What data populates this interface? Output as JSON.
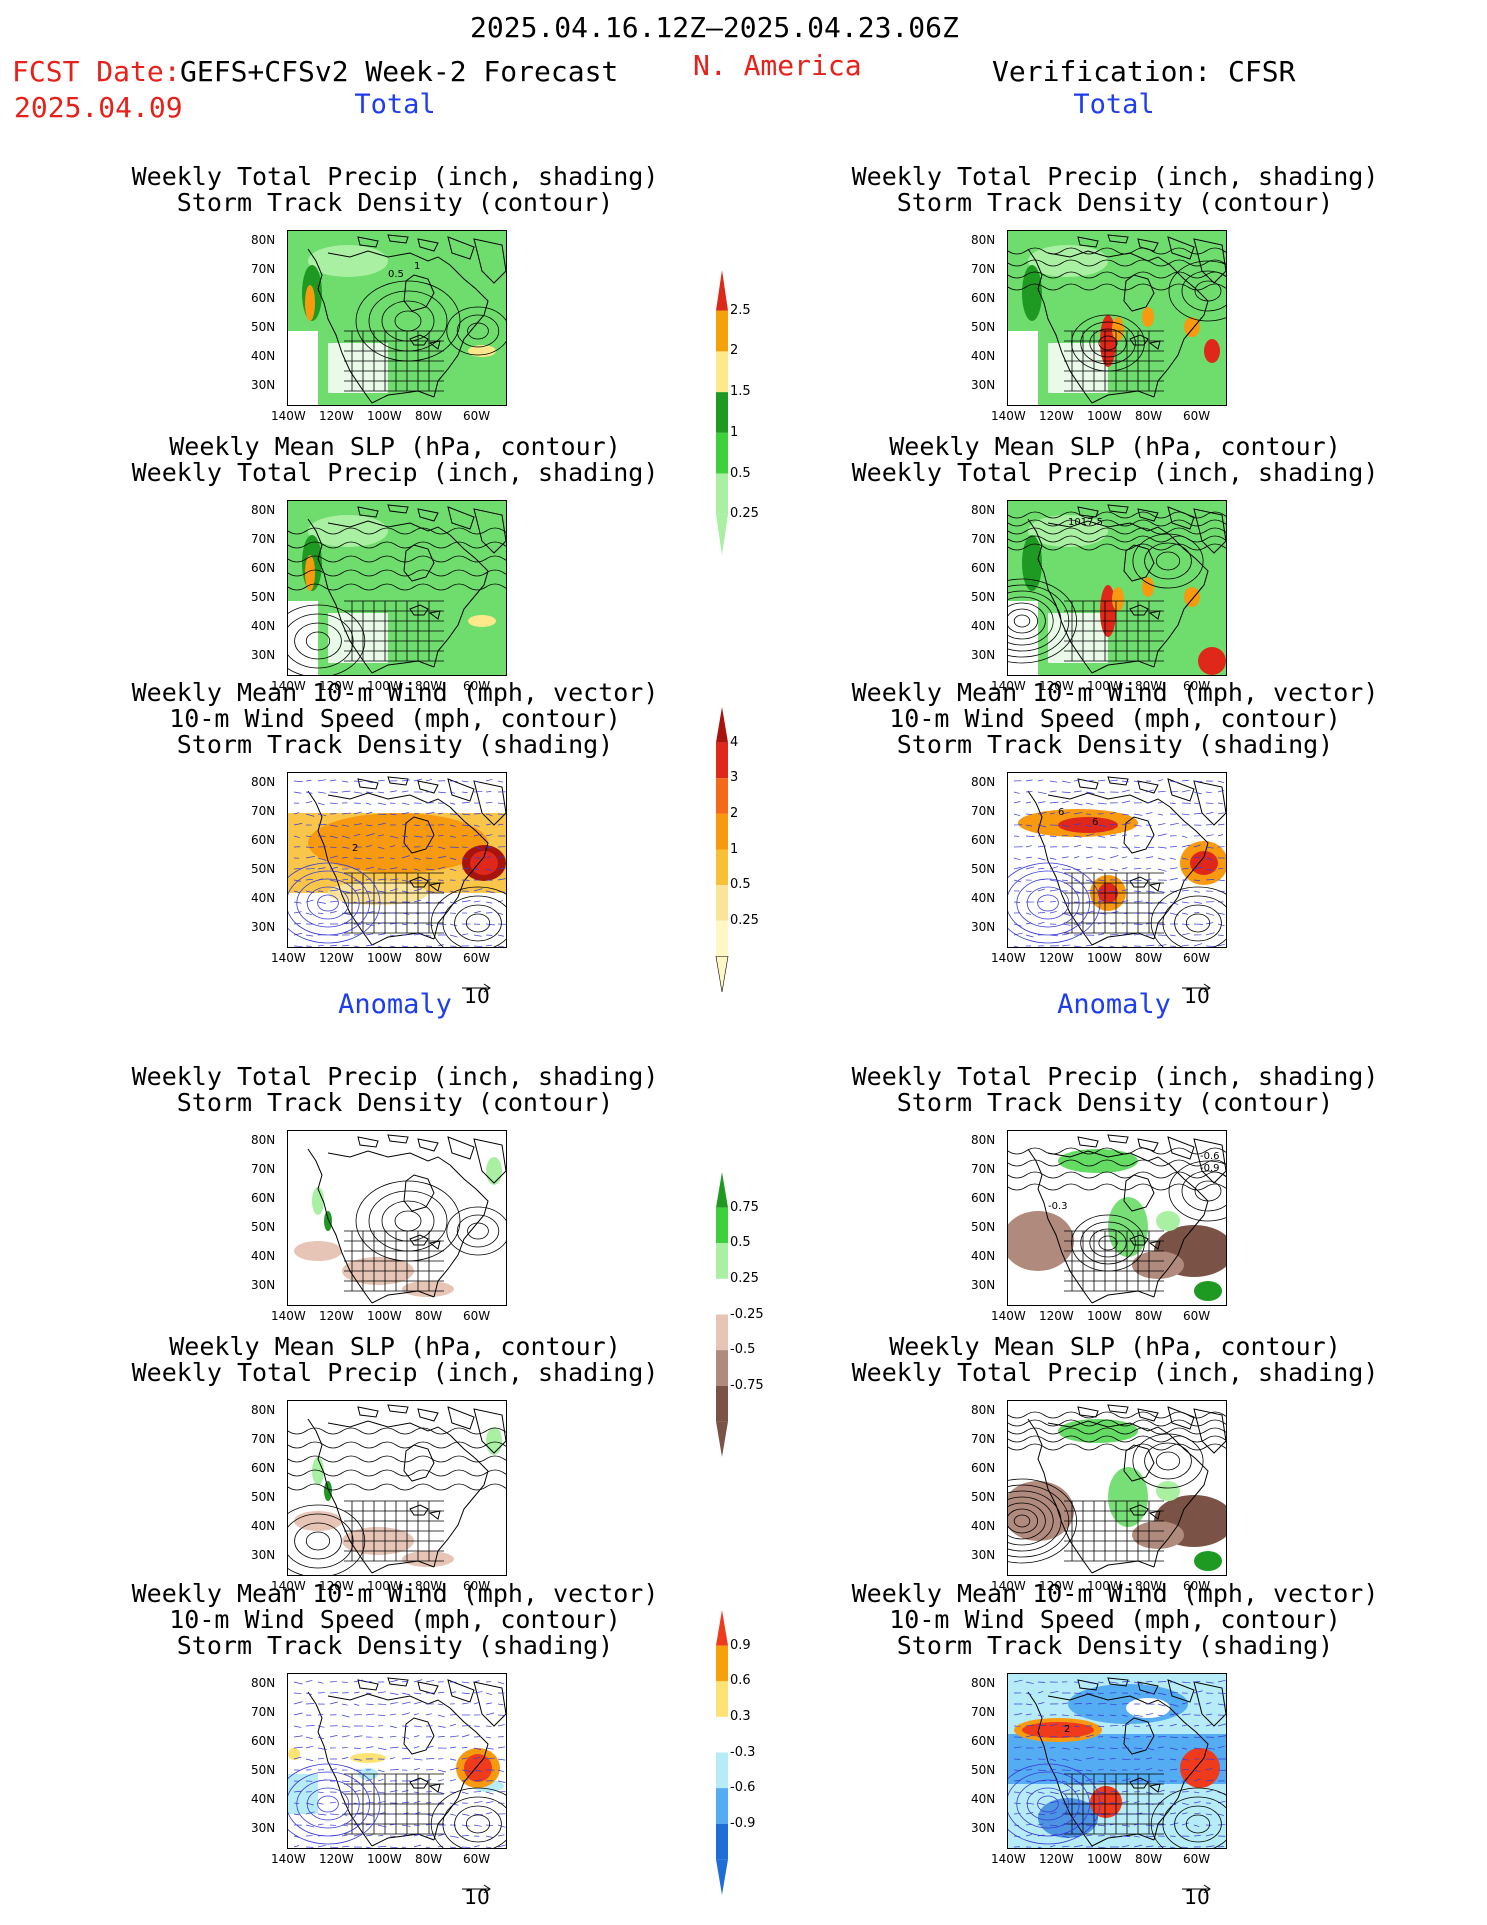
{
  "header": {
    "date_range": "2025.04.16.12Z–2025.04.23.06Z",
    "fcst_label": "FCST Date:",
    "fcst_model": "GEFS+CFSv2 Week-2 Forecast",
    "fcst_date": "2025.04.09",
    "region": "N. America",
    "verification": "Verification: CFSR"
  },
  "sections": {
    "total": "Total",
    "anomaly": "Anomaly"
  },
  "panel_titles": {
    "precip_track": [
      "Weekly Total Precip (inch, shading)",
      "Storm Track Density (contour)"
    ],
    "slp_precip": [
      "Weekly Mean SLP (hPa, contour)",
      "Weekly Total Precip (inch, shading)"
    ],
    "wind_track": [
      "Weekly Mean 10-m Wind (mph, vector)",
      "10-m Wind Speed (mph, contour)",
      "Storm Track Density (shading)"
    ]
  },
  "axes": {
    "lat_labels": [
      "80N",
      "70N",
      "60N",
      "50N",
      "40N",
      "30N"
    ],
    "lon_labels": [
      "140W",
      "120W",
      "100W",
      "80W",
      "60W"
    ]
  },
  "vector_ref": "10",
  "map_labels": {
    "fcst_precip_track": [
      "0.5",
      "1"
    ],
    "obs_slp_precip": [
      "1017.5"
    ],
    "fcst_wind_track": [
      "2"
    ],
    "obs_wind_track": [
      "6",
      "6"
    ],
    "obs_precip_track_anom": [
      "-0.6",
      "-0.9",
      "-0.3"
    ],
    "obs_wind_track_anom": [
      "2"
    ]
  },
  "colorbars": {
    "precip_total": {
      "labels": [
        "2.5",
        "2",
        "1.5",
        "1",
        "0.5",
        "0.25"
      ],
      "colors": [
        "#dc2a18",
        "#f5a20a",
        "#fde98c",
        "#1e9a22",
        "#3dd23c",
        "#a9f0a2"
      ]
    },
    "track_total": {
      "labels": [
        "4",
        "3",
        "2",
        "1",
        "0.5",
        "0.25"
      ],
      "colors": [
        "#a8130c",
        "#e0281a",
        "#f56a18",
        "#f79a10",
        "#f8c036",
        "#fbe49a",
        "#fff7c4"
      ]
    },
    "precip_anom": {
      "labels": [
        "0.75",
        "0.5",
        "0.25",
        "-0.25",
        "-0.5",
        "-0.75"
      ],
      "colors": [
        "#1e9a22",
        "#3dd23c",
        "#a9f0a2",
        "#ffffff",
        "#e6c4b6",
        "#b08a7c",
        "#7a5346"
      ]
    },
    "track_anom": {
      "labels": [
        "0.9",
        "0.6",
        "0.3",
        "-0.3",
        "-0.6",
        "-0.9"
      ],
      "colors": [
        "#ef3a1c",
        "#f8a00c",
        "#fde274",
        "#ffffff",
        "#b6ecf7",
        "#54acf2",
        "#1f6ed8"
      ]
    }
  },
  "colors": {
    "green": "#3dd23c",
    "dark_green": "#1e9a22",
    "light_green": "#a9f0a2",
    "brown": "#b08a7c",
    "dark_brown": "#7a5346",
    "orange": "#f79a10",
    "red": "#e0281a",
    "blue": "#54acf2",
    "contour_blue": "#3a3ad8"
  }
}
